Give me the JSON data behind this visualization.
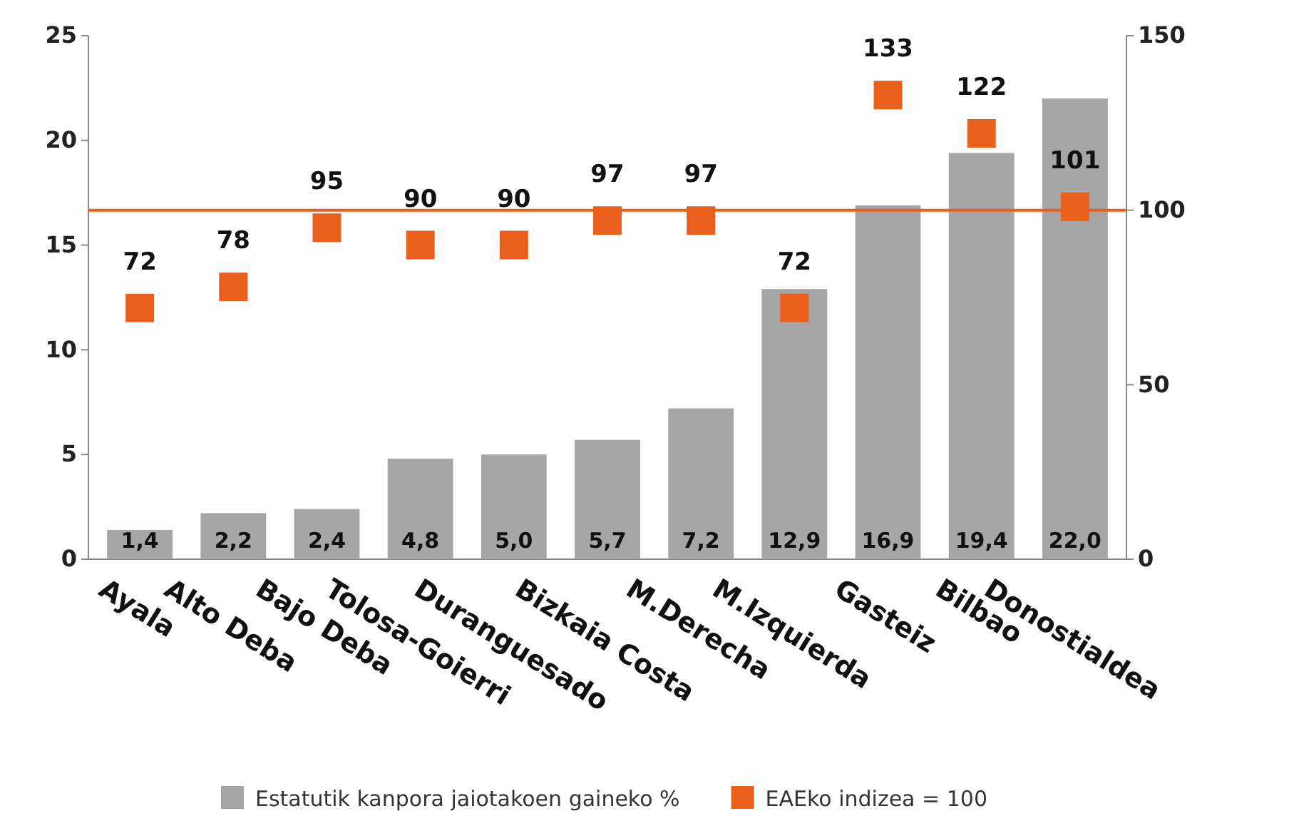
{
  "chart_data": {
    "type": "bar",
    "categories": [
      "Ayala",
      "Alto Deba",
      "Bajo Deba",
      "Tolosa-Goierri",
      "Duranguesado",
      "Bizkaia Costa",
      "M.Derecha",
      "M.Izquierda",
      "Gasteiz",
      "Bilbao",
      "Donostialdea"
    ],
    "series": [
      {
        "name": "Estatutik kanpora jaiotakoen gaineko %",
        "color": "#a6a6a6",
        "values": [
          1.4,
          2.2,
          2.4,
          4.8,
          5.0,
          5.7,
          7.2,
          12.9,
          16.9,
          19.4,
          22.0
        ],
        "value_labels": [
          "1,4",
          "2,2",
          "2,4",
          "4,8",
          "5,0",
          "5,7",
          "7,2",
          "12,9",
          "16,9",
          "19,4",
          "22,0"
        ]
      },
      {
        "name": "EAEko indizea = 100",
        "type": "scatter",
        "axis": "y2",
        "color": "#e8601c",
        "marker": "square",
        "values": [
          72,
          78,
          95,
          90,
          90,
          97,
          97,
          72,
          133,
          122,
          101
        ],
        "value_labels": [
          "72",
          "78",
          "95",
          "90",
          "90",
          "97",
          "97",
          "72",
          "133",
          "122",
          "101"
        ]
      }
    ],
    "ylim": [
      0,
      25
    ],
    "yticks": [
      0,
      5,
      10,
      15,
      20,
      25
    ],
    "y2lim": [
      0,
      150
    ],
    "y2ticks": [
      0,
      50,
      100,
      150
    ],
    "ref_lines": [
      {
        "axis": "y2",
        "value": 100,
        "color": "#e8601c"
      }
    ],
    "grid": false,
    "legend": "bottom"
  }
}
